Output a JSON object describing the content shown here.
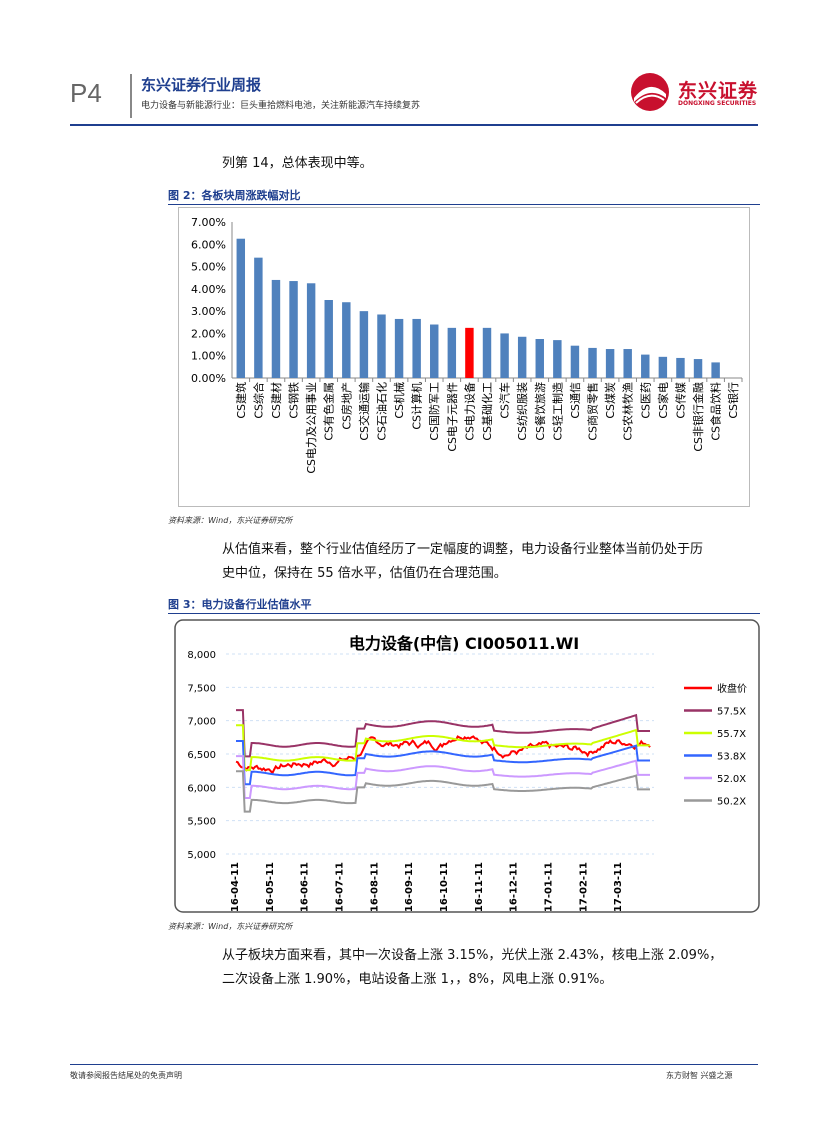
{
  "header": {
    "page_number": "P4",
    "title": "东兴证券行业周报",
    "subtitle": "电力设备与新能源行业：巨头重拾燃料电池，关注新能源汽车持续复苏",
    "logo_text": "东兴证券",
    "logo_sub": "DONGXING SECURITIES"
  },
  "paragraphs": {
    "p1": "列第 14，总体表现中等。",
    "p2_line1": "从估值来看，整个行业估值经历了一定幅度的调整，电力设备行业整体当前仍处于历",
    "p2_line2": "史中位，保持在 55 倍水平，估值仍在合理范围。",
    "p3_line1": "从子板块方面来看，其中一次设备上涨 3.15%，光伏上涨 2.43%，核电上涨 2.09%，",
    "p3_line2": "二次设备上涨 1.90%，电站设备上涨 1，，8%，风电上涨 0.91%。"
  },
  "figure2": {
    "title": "图 2：各板块周涨跌幅对比",
    "source": "资料来源：Wind，东兴证券研究所"
  },
  "figure3": {
    "title": "图 3：电力设备行业估值水平",
    "source": "资料来源：Wind，东兴证券研究所"
  },
  "footer": {
    "left": "敬请参阅报告结尾处的免责声明",
    "right": "东方财智 兴盛之源"
  },
  "colors": {
    "brand": "#1f3f8f",
    "bar": "#4f81bd",
    "highlight": "#ff0000"
  },
  "chart_data": [
    {
      "type": "bar",
      "title": "",
      "categories": [
        "CS建筑",
        "CS综合",
        "CS建材",
        "CS钢铁",
        "CS电力及公用事业",
        "CS有色金属",
        "CS房地产",
        "CS交通运输",
        "CS石油石化",
        "CS机械",
        "CS计算机",
        "CS国防军工",
        "CS电子元器件",
        "CS电力设备",
        "CS基础化工",
        "CS汽车",
        "CS纺织服装",
        "CS餐饮旅游",
        "CS轻工制造",
        "CS通信",
        "CS商贸零售",
        "CS煤炭",
        "CS农林牧渔",
        "CS医药",
        "CS家电",
        "CS传媒",
        "CS非银行金融",
        "CS食品饮料",
        "CS银行"
      ],
      "values": [
        6.25,
        5.4,
        4.4,
        4.35,
        4.25,
        3.5,
        3.4,
        3.0,
        2.85,
        2.65,
        2.65,
        2.4,
        2.25,
        2.25,
        2.25,
        2.0,
        1.85,
        1.75,
        1.7,
        1.45,
        1.35,
        1.3,
        1.3,
        1.05,
        0.95,
        0.9,
        0.85,
        0.7,
        0.0
      ],
      "highlight": "CS电力设备",
      "yticks": [
        "0.00%",
        "1.00%",
        "2.00%",
        "3.00%",
        "4.00%",
        "5.00%",
        "6.00%",
        "7.00%"
      ],
      "ylim": [
        0,
        7
      ]
    },
    {
      "type": "line",
      "title": "电力设备(中信) CI005011.WI",
      "yticks": [
        "5,000",
        "5,500",
        "6,000",
        "6,500",
        "7,000",
        "7,500",
        "8,000"
      ],
      "ylim": [
        5000,
        8000
      ],
      "xticks": [
        "16-04-11",
        "16-05-11",
        "16-06-11",
        "16-07-11",
        "16-08-11",
        "16-09-11",
        "16-10-11",
        "16-11-11",
        "16-12-11",
        "17-01-11",
        "17-02-11",
        "17-03-11"
      ],
      "series": [
        {
          "name": "收盘价",
          "color": "#ff0000"
        },
        {
          "name": "57.5X",
          "color": "#993366"
        },
        {
          "name": "55.7X",
          "color": "#ccff00"
        },
        {
          "name": "53.8X",
          "color": "#3366ff"
        },
        {
          "name": "52.0X",
          "color": "#cc99ff"
        },
        {
          "name": "50.2X",
          "color": "#999999"
        }
      ]
    }
  ]
}
